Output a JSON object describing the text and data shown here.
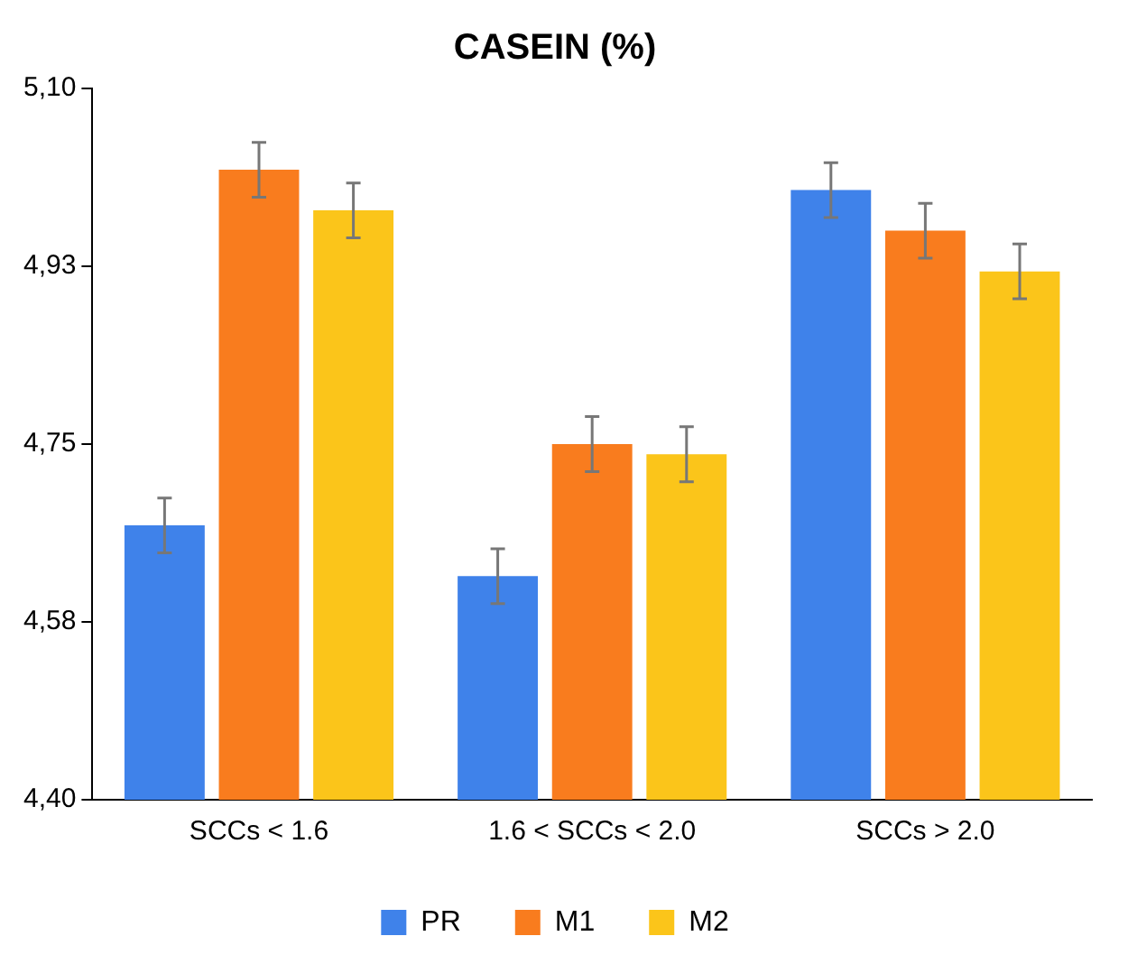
{
  "chart_data": {
    "type": "bar",
    "title": "CASEIN (%)",
    "categories": [
      "SCCs < 1.6",
      "1.6 < SCCs < 2.0",
      "SCCs > 2.0"
    ],
    "series": [
      {
        "name": "PR",
        "color": "#3f82ea",
        "values": [
          4.67,
          4.62,
          5.0
        ],
        "errors": [
          0.027,
          0.027,
          0.027
        ]
      },
      {
        "name": "M1",
        "color": "#f97c1e",
        "values": [
          5.02,
          4.75,
          4.96
        ],
        "errors": [
          0.027,
          0.027,
          0.027
        ]
      },
      {
        "name": "M2",
        "color": "#fbc51a",
        "values": [
          4.98,
          4.74,
          4.92
        ],
        "errors": [
          0.027,
          0.027,
          0.027
        ]
      }
    ],
    "ylim": [
      4.4,
      5.1
    ],
    "yticks": [
      {
        "value": 4.4,
        "label": "4,40"
      },
      {
        "value": 4.575,
        "label": "4,58"
      },
      {
        "value": 4.75,
        "label": "4,75"
      },
      {
        "value": 4.925,
        "label": "4,93"
      },
      {
        "value": 5.1,
        "label": "5,10"
      }
    ],
    "grid": false,
    "legend": "bottom"
  }
}
